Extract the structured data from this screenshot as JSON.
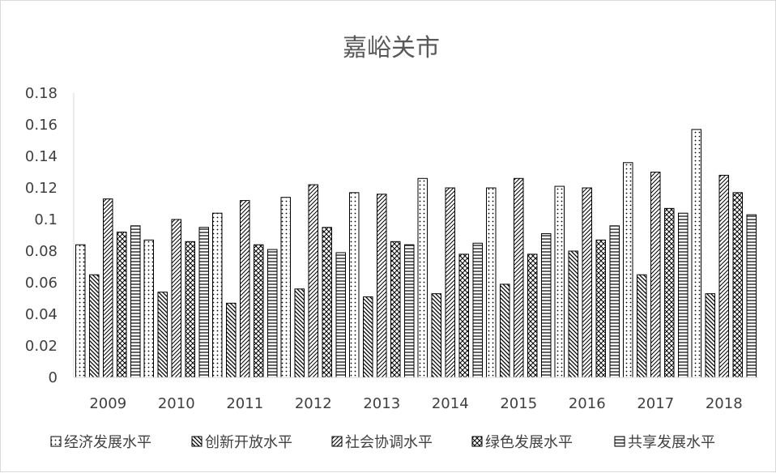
{
  "chart_data": {
    "type": "bar",
    "title": "嘉峪关市",
    "xlabel": "",
    "ylabel": "",
    "categories": [
      "2009",
      "2010",
      "2011",
      "2012",
      "2013",
      "2014",
      "2015",
      "2016",
      "2017",
      "2018"
    ],
    "ylim": [
      0,
      0.18
    ],
    "yticks": [
      0,
      0.02,
      0.04,
      0.06,
      0.08,
      0.1,
      0.12,
      0.14,
      0.16,
      0.18
    ],
    "ytick_labels": [
      "0",
      "0.02",
      "0.04",
      "0.06",
      "0.08",
      "0.1",
      "0.12",
      "0.14",
      "0.16",
      "0.18"
    ],
    "grid": false,
    "legend_position": "bottom",
    "series": [
      {
        "name": "经济发展水平",
        "pattern": "dots",
        "values": [
          0.084,
          0.087,
          0.104,
          0.114,
          0.117,
          0.126,
          0.12,
          0.121,
          0.136,
          0.157
        ]
      },
      {
        "name": "创新开放水平",
        "pattern": "back-diag",
        "values": [
          0.065,
          0.054,
          0.047,
          0.056,
          0.051,
          0.053,
          0.059,
          0.08,
          0.065,
          0.053
        ]
      },
      {
        "name": "社会协调水平",
        "pattern": "fwd-diag",
        "values": [
          0.113,
          0.1,
          0.112,
          0.122,
          0.116,
          0.12,
          0.126,
          0.12,
          0.13,
          0.128
        ]
      },
      {
        "name": "绿色发展水平",
        "pattern": "diag-cross",
        "values": [
          0.092,
          0.086,
          0.084,
          0.095,
          0.086,
          0.078,
          0.078,
          0.087,
          0.107,
          0.117
        ]
      },
      {
        "name": "共享发展水平",
        "pattern": "horizontal",
        "values": [
          0.096,
          0.095,
          0.081,
          0.079,
          0.084,
          0.085,
          0.091,
          0.096,
          0.104,
          0.103
        ]
      }
    ]
  }
}
